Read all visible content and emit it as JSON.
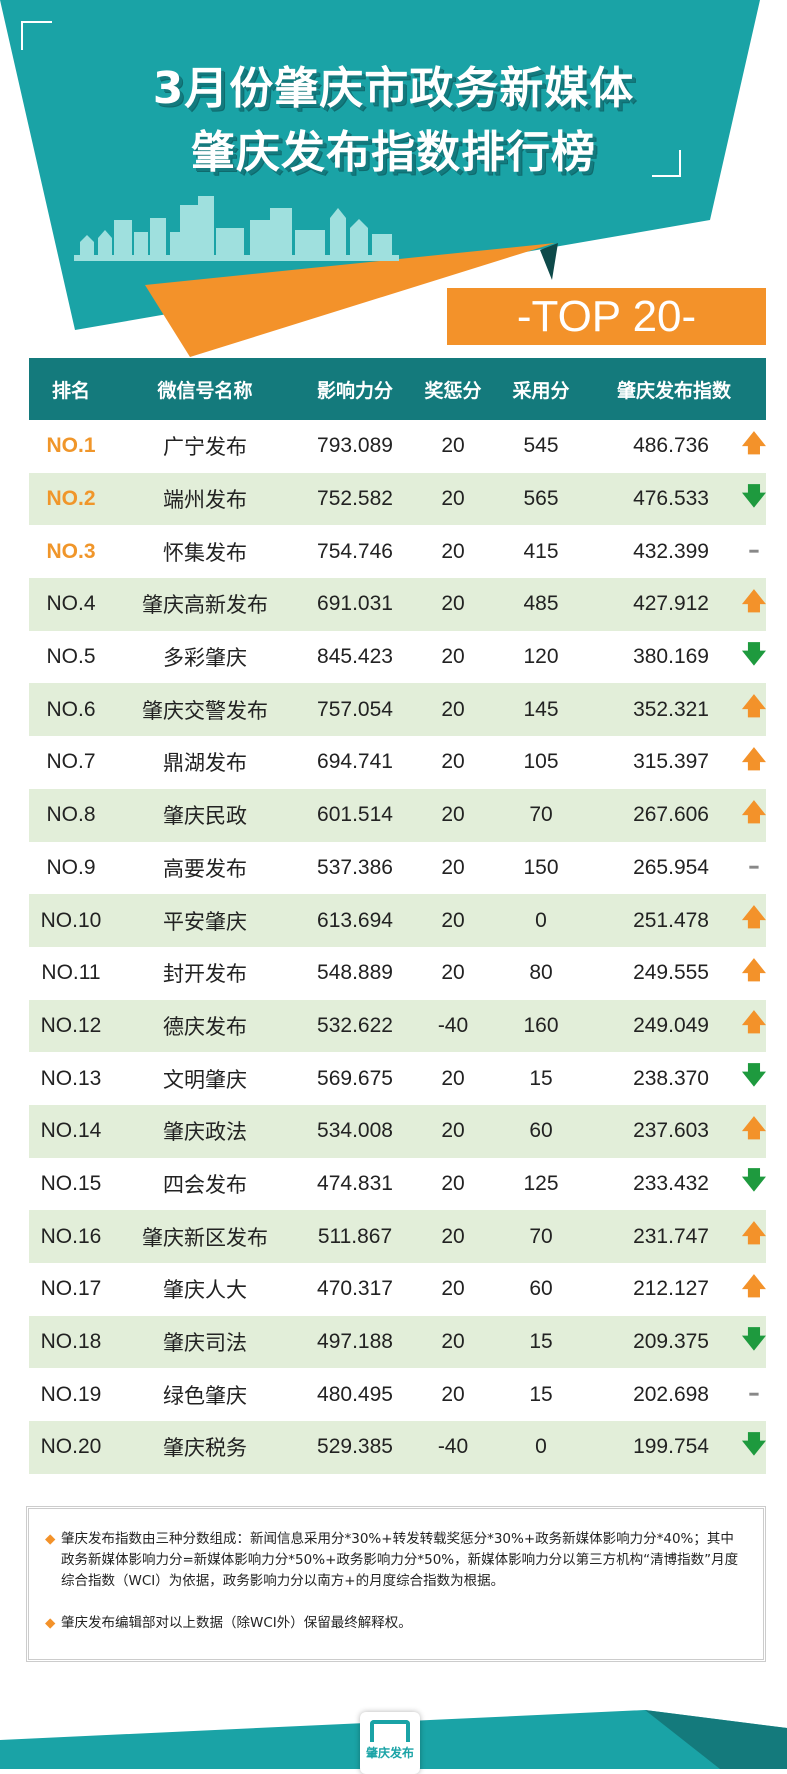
{
  "header": {
    "title_line1": "3月份肇庆市政务新媒体",
    "title_line2": "肇庆发布指数排行榜",
    "badge": "-TOP 20-"
  },
  "colors": {
    "teal": "#1aa3a6",
    "dark_teal": "#147a7c",
    "orange": "#f3922a",
    "row_alt": "#e2eed9",
    "up": "#f3922a",
    "down": "#1e9a3e",
    "flat": "#888888"
  },
  "table": {
    "columns": [
      "排名",
      "微信号名称",
      "影响力分",
      "奖惩分",
      "采用分",
      "肇庆发布指数"
    ],
    "rows": [
      {
        "rank": "NO.1",
        "name": "广宁发布",
        "influence": "793.089",
        "reward": "20",
        "adopt": "545",
        "index": "486.736",
        "trend": "up"
      },
      {
        "rank": "NO.2",
        "name": "端州发布",
        "influence": "752.582",
        "reward": "20",
        "adopt": "565",
        "index": "476.533",
        "trend": "down"
      },
      {
        "rank": "NO.3",
        "name": "怀集发布",
        "influence": "754.746",
        "reward": "20",
        "adopt": "415",
        "index": "432.399",
        "trend": "flat"
      },
      {
        "rank": "NO.4",
        "name": "肇庆高新发布",
        "influence": "691.031",
        "reward": "20",
        "adopt": "485",
        "index": "427.912",
        "trend": "up"
      },
      {
        "rank": "NO.5",
        "name": "多彩肇庆",
        "influence": "845.423",
        "reward": "20",
        "adopt": "120",
        "index": "380.169",
        "trend": "down"
      },
      {
        "rank": "NO.6",
        "name": "肇庆交警发布",
        "influence": "757.054",
        "reward": "20",
        "adopt": "145",
        "index": "352.321",
        "trend": "up"
      },
      {
        "rank": "NO.7",
        "name": "鼎湖发布",
        "influence": "694.741",
        "reward": "20",
        "adopt": "105",
        "index": "315.397",
        "trend": "up"
      },
      {
        "rank": "NO.8",
        "name": "肇庆民政",
        "influence": "601.514",
        "reward": "20",
        "adopt": "70",
        "index": "267.606",
        "trend": "up"
      },
      {
        "rank": "NO.9",
        "name": "高要发布",
        "influence": "537.386",
        "reward": "20",
        "adopt": "150",
        "index": "265.954",
        "trend": "flat"
      },
      {
        "rank": "NO.10",
        "name": "平安肇庆",
        "influence": "613.694",
        "reward": "20",
        "adopt": "0",
        "index": "251.478",
        "trend": "up"
      },
      {
        "rank": "NO.11",
        "name": "封开发布",
        "influence": "548.889",
        "reward": "20",
        "adopt": "80",
        "index": "249.555",
        "trend": "up"
      },
      {
        "rank": "NO.12",
        "name": "德庆发布",
        "influence": "532.622",
        "reward": "-40",
        "adopt": "160",
        "index": "249.049",
        "trend": "up"
      },
      {
        "rank": "NO.13",
        "name": "文明肇庆",
        "influence": "569.675",
        "reward": "20",
        "adopt": "15",
        "index": "238.370",
        "trend": "down"
      },
      {
        "rank": "NO.14",
        "name": "肇庆政法",
        "influence": "534.008",
        "reward": "20",
        "adopt": "60",
        "index": "237.603",
        "trend": "up"
      },
      {
        "rank": "NO.15",
        "name": "四会发布",
        "influence": "474.831",
        "reward": "20",
        "adopt": "125",
        "index": "233.432",
        "trend": "down"
      },
      {
        "rank": "NO.16",
        "name": "肇庆新区发布",
        "influence": "511.867",
        "reward": "20",
        "adopt": "70",
        "index": "231.747",
        "trend": "up"
      },
      {
        "rank": "NO.17",
        "name": "肇庆人大",
        "influence": "470.317",
        "reward": "20",
        "adopt": "60",
        "index": "212.127",
        "trend": "up"
      },
      {
        "rank": "NO.18",
        "name": "肇庆司法",
        "influence": "497.188",
        "reward": "20",
        "adopt": "15",
        "index": "209.375",
        "trend": "down"
      },
      {
        "rank": "NO.19",
        "name": "绿色肇庆",
        "influence": "480.495",
        "reward": "20",
        "adopt": "15",
        "index": "202.698",
        "trend": "flat"
      },
      {
        "rank": "NO.20",
        "name": "肇庆税务",
        "influence": "529.385",
        "reward": "-40",
        "adopt": "0",
        "index": "199.754",
        "trend": "down"
      }
    ]
  },
  "notes": [
    "肇庆发布指数由三种分数组成：新闻信息采用分*30%+转发转载奖惩分*30%+政务新媒体影响力分*40%；其中政务新媒体影响力分=新媒体影响力分*50%+政务影响力分*50%，新媒体影响力分以第三方机构“清博指数”月度综合指数（WCI）为依据，政务影响力分以南方+的月度综合指数为根据。",
    "肇庆发布编辑部对以上数据（除WCI外）保留最终解释权。"
  ],
  "footer": {
    "logo_text": "肇庆发布"
  }
}
